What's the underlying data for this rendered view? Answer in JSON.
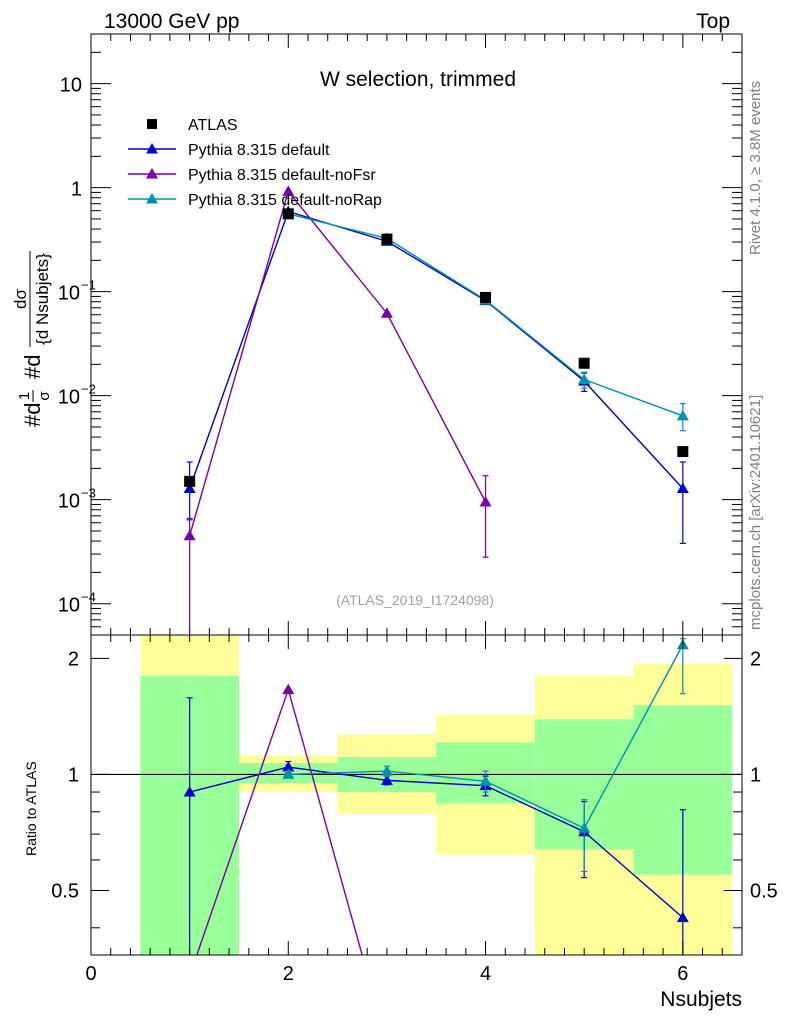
{
  "header": {
    "left": "13000 GeV pp",
    "right": "Top"
  },
  "side_label_top": "Rivet 4.1.0, ≥ 3.8M events",
  "side_label_bottom": "mcplots.cern.ch [arXiv:2401.10621]",
  "chart_data": {
    "type": "line",
    "title": "W selection, trimmed",
    "analysis_tag": "(ATLAS_2019_I1724098)",
    "xlabel": "Nsubjets",
    "ylabel": "#dσ / σ d Nsubjets",
    "ylabel_parts": {
      "a": "#d",
      "b": "1",
      "c": "σ",
      "d": "#d",
      "e": "dσ",
      "f": "{d Nsubjets}"
    },
    "xlim": [
      0,
      6.6
    ],
    "ylim": [
      5e-05,
      30
    ],
    "yscale": "log",
    "x_ticks": [
      "0",
      "2",
      "4",
      "6"
    ],
    "y_ticks": [
      {
        "value": 10,
        "mant": "10",
        "exp": ""
      },
      {
        "value": 1,
        "mant": "1",
        "exp": ""
      },
      {
        "value": 0.1,
        "mant": "10",
        "exp": "−1"
      },
      {
        "value": 0.01,
        "mant": "10",
        "exp": "−2"
      },
      {
        "value": 0.001,
        "mant": "10",
        "exp": "−3"
      },
      {
        "value": 0.0001,
        "mant": "10",
        "exp": "−4"
      }
    ],
    "x": [
      1,
      2,
      3,
      4,
      5,
      6
    ],
    "data": {
      "name": "ATLAS",
      "values": [
        0.0015,
        0.56,
        0.32,
        0.088,
        0.0205,
        0.0029
      ]
    },
    "series": [
      {
        "name": "Pythia 8.315 default",
        "color": "#0000cc",
        "values": [
          0.00128,
          0.59,
          0.305,
          0.082,
          0.0138,
          0.00128
        ],
        "errors": [
          [
            0.00064,
            0.0023
          ],
          null,
          null,
          null,
          [
            0.011,
            0.0165
          ],
          [
            0.00038,
            0.0023
          ]
        ]
      },
      {
        "name": "Pythia 8.315 default-noFsr",
        "color": "#7a00a8",
        "values": [
          0.00045,
          0.92,
          0.062,
          0.00095,
          null,
          null
        ],
        "errors": [
          [
            3e-05,
            0.00066
          ],
          null,
          null,
          [
            0.00028,
            0.0017
          ],
          null,
          null
        ]
      },
      {
        "name": "Pythia 8.315 default-noRap",
        "color": "#0090b0",
        "values": [
          null,
          0.56,
          0.325,
          0.083,
          0.0143,
          0.0064
        ],
        "errors": [
          null,
          null,
          null,
          null,
          [
            0.0118,
            0.0168
          ],
          [
            0.0046,
            0.0084
          ]
        ]
      }
    ],
    "ratio": {
      "ylabel": "Ratio to ATLAS",
      "ylim": [
        0.34,
        2.3
      ],
      "y_ticks": [
        "0.5",
        "1",
        "2"
      ],
      "y_tick_values": [
        0.5,
        1,
        2
      ],
      "reference": 1,
      "bands": [
        {
          "x": [
            0.5,
            1.5
          ],
          "inner": [
            0.3,
            1.8
          ],
          "outer": [
            0.3,
            2.55
          ]
        },
        {
          "x": [
            1.5,
            2.5
          ],
          "inner": [
            0.95,
            1.07
          ],
          "outer": [
            0.9,
            1.12
          ]
        },
        {
          "x": [
            2.5,
            3.5
          ],
          "inner": [
            0.9,
            1.11
          ],
          "outer": [
            0.79,
            1.27
          ]
        },
        {
          "x": [
            3.5,
            4.5
          ],
          "inner": [
            0.84,
            1.21
          ],
          "outer": [
            0.62,
            1.43
          ]
        },
        {
          "x": [
            4.5,
            5.5
          ],
          "inner": [
            0.64,
            1.39
          ],
          "outer": [
            0.3,
            1.8
          ]
        },
        {
          "x": [
            5.5,
            6.5
          ],
          "inner": [
            0.55,
            1.51
          ],
          "outer": [
            0.3,
            1.94
          ]
        }
      ],
      "series": [
        {
          "name": "Pythia 8.315 default",
          "color": "#0000cc",
          "values": [
            0.9,
            1.045,
            0.965,
            0.935,
            0.71,
            0.425
          ],
          "errors": [
            [
              0.3,
              1.58
            ],
            [
              1.01,
              1.08
            ],
            [
              0.94,
              0.99
            ],
            [
              0.88,
              0.99
            ],
            [
              0.54,
              0.85
            ],
            [
              0.3,
              0.81
            ]
          ]
        },
        {
          "name": "Pythia 8.315 default-noFsr",
          "color": "#7a00a8",
          "values": [
            0.3,
            1.66,
            0.2,
            null,
            null,
            null
          ],
          "errors": [
            null,
            null,
            null,
            null,
            null,
            null
          ]
        },
        {
          "name": "Pythia 8.315 default-noRap",
          "color": "#0090b0",
          "values": [
            null,
            1.0,
            1.02,
            0.96,
            0.725,
            2.17
          ],
          "errors": [
            null,
            [
              0.98,
              1.02
            ],
            [
              0.99,
              1.05
            ],
            [
              0.9,
              1.02
            ],
            [
              0.56,
              0.86
            ],
            [
              1.62,
              2.25
            ]
          ]
        }
      ]
    }
  }
}
